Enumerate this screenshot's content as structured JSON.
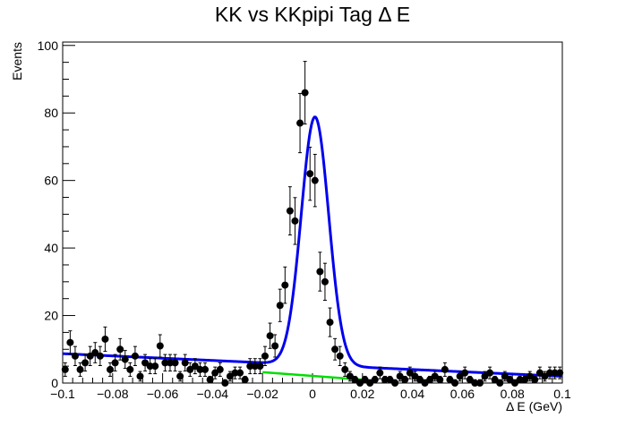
{
  "chart_data": {
    "type": "scatter",
    "title": "KK vs KKpipi Tag Δ E",
    "xlabel": "Δ E (GeV)",
    "ylabel": "Events",
    "xlim": [
      -0.1,
      0.1
    ],
    "ylim": [
      0,
      101
    ],
    "x_ticks": [
      "−0.1",
      "−0.08",
      "−0.06",
      "−0.04",
      "−0.02",
      "0",
      "0.02",
      "0.04",
      "0.06",
      "0.08",
      "0.1"
    ],
    "y_ticks": [
      "0",
      "20",
      "40",
      "60",
      "80",
      "100"
    ],
    "grid": false,
    "colors": {
      "data": "#000000",
      "fit": "#0000ee",
      "background": "#00dd00"
    },
    "series": [
      {
        "type": "points_with_errors",
        "x": [
          -0.099,
          -0.097,
          -0.095,
          -0.093,
          -0.091,
          -0.089,
          -0.087,
          -0.085,
          -0.083,
          -0.081,
          -0.079,
          -0.077,
          -0.075,
          -0.073,
          -0.071,
          -0.069,
          -0.067,
          -0.065,
          -0.063,
          -0.061,
          -0.059,
          -0.057,
          -0.055,
          -0.053,
          -0.051,
          -0.049,
          -0.047,
          -0.045,
          -0.043,
          -0.041,
          -0.039,
          -0.037,
          -0.035,
          -0.033,
          -0.031,
          -0.029,
          -0.027,
          -0.025,
          -0.023,
          -0.021,
          -0.019,
          -0.017,
          -0.015,
          -0.013,
          -0.011,
          -0.009,
          -0.007,
          -0.005,
          -0.003,
          -0.001,
          0.001,
          0.003,
          0.005,
          0.007,
          0.009,
          0.011,
          0.013,
          0.015,
          0.017,
          0.019,
          0.021,
          0.023,
          0.025,
          0.027,
          0.029,
          0.031,
          0.033,
          0.035,
          0.037,
          0.039,
          0.041,
          0.043,
          0.045,
          0.047,
          0.049,
          0.051,
          0.053,
          0.055,
          0.057,
          0.059,
          0.061,
          0.063,
          0.065,
          0.067,
          0.069,
          0.071,
          0.073,
          0.075,
          0.077,
          0.079,
          0.081,
          0.083,
          0.085,
          0.087,
          0.089,
          0.091,
          0.093,
          0.095,
          0.097,
          0.099
        ],
        "y": [
          4,
          12,
          8,
          4,
          6,
          8,
          9,
          8,
          13,
          4,
          6,
          10,
          7,
          4,
          8,
          2,
          6,
          5,
          5,
          11,
          6,
          6,
          6,
          2,
          6,
          4,
          5,
          4,
          4,
          1,
          3,
          4,
          0,
          2,
          3,
          3,
          1,
          5,
          5,
          5,
          8,
          14,
          11,
          23,
          29,
          51,
          48,
          77,
          86,
          62,
          60,
          33,
          30,
          18,
          10,
          8,
          4,
          2,
          1,
          0,
          1,
          0,
          1,
          3,
          1,
          1,
          0,
          2,
          1,
          3,
          2,
          1,
          0,
          1,
          2,
          1,
          4,
          1,
          0,
          2,
          3,
          1,
          0,
          0,
          2,
          3,
          1,
          0,
          2,
          1,
          0,
          1,
          1,
          2,
          1,
          3,
          2,
          3,
          3,
          3
        ]
      },
      {
        "type": "fit_total",
        "model": "gaussian_plus_linear",
        "mean": 0.001,
        "sigma": 0.0055,
        "amplitude": 73.5,
        "bkg_at_xmin": 8.7,
        "bkg_at_xmax": 2.0
      },
      {
        "type": "fit_background",
        "model": "linear",
        "x_from": -0.02,
        "x_to": 0.02,
        "y_from": 3.2,
        "y_to": 1.0
      }
    ]
  }
}
